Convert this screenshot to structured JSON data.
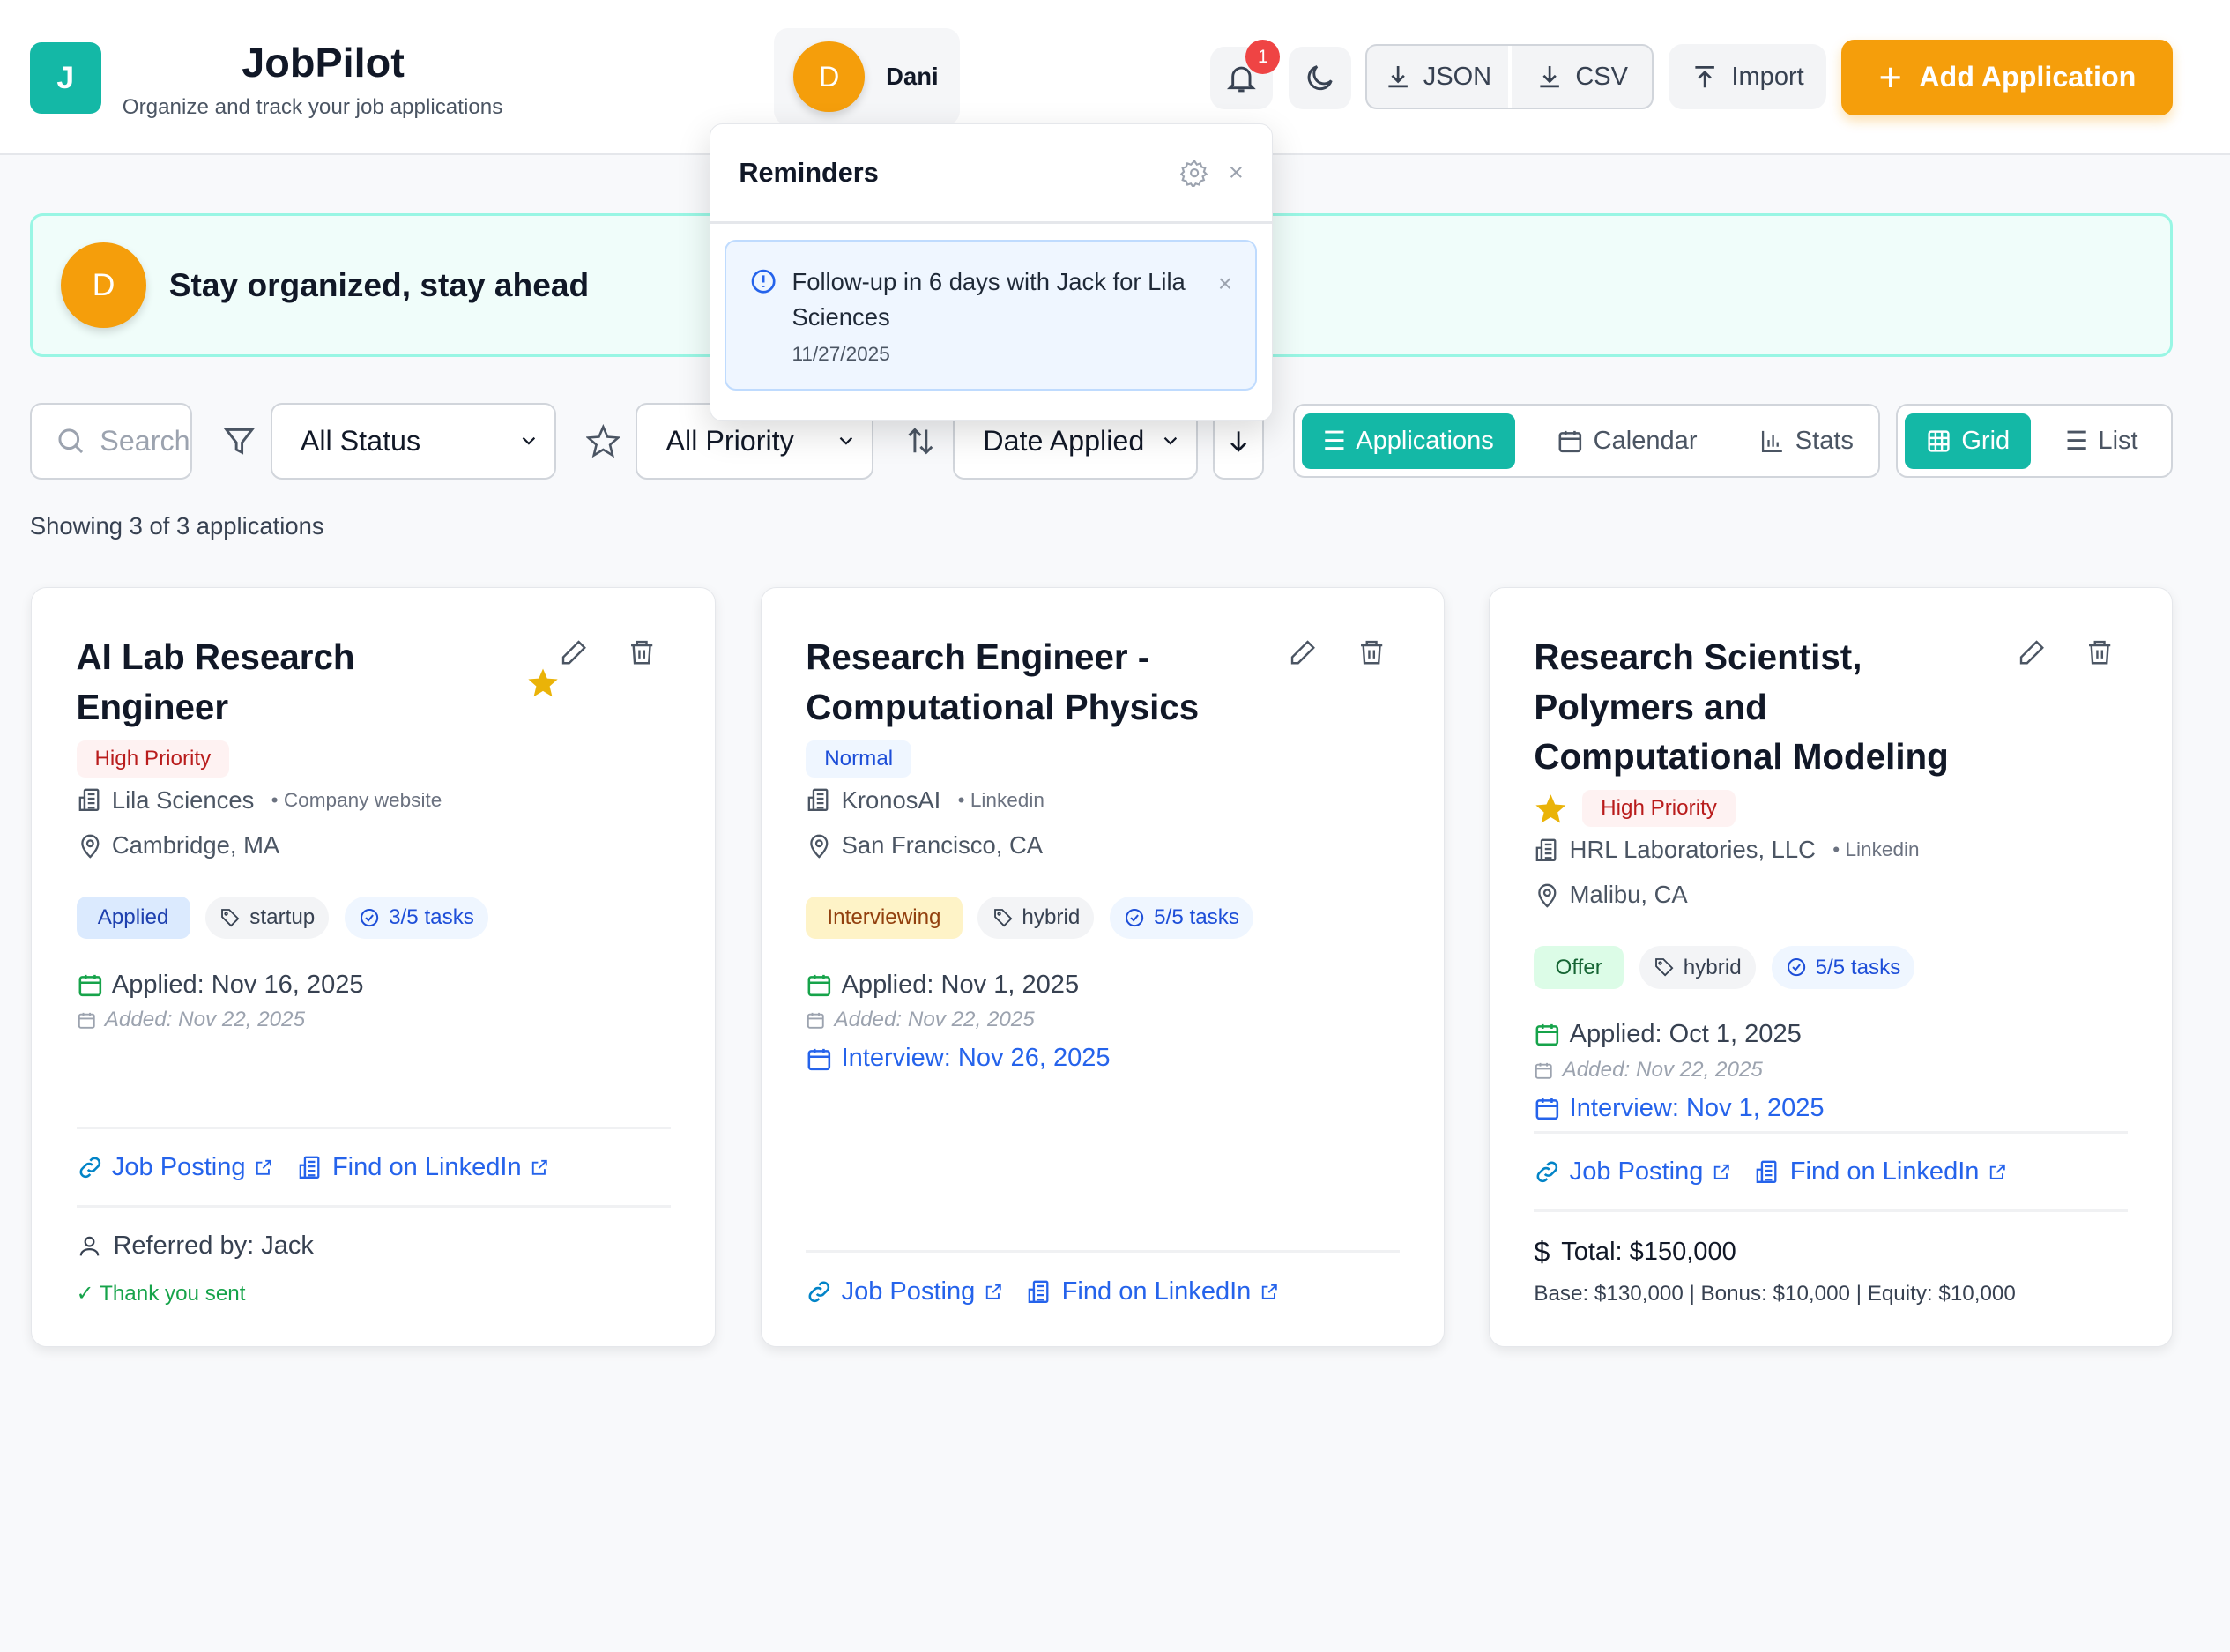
{
  "app": {
    "logo_letter": "J",
    "title": "JobPilot",
    "subtitle": "Organize and track your job applications"
  },
  "user": {
    "initial": "D",
    "name": "Dani"
  },
  "header": {
    "notification_count": "1",
    "export_json": "JSON",
    "export_csv": "CSV",
    "import": "Import",
    "add": "Add Application"
  },
  "colors": {
    "brand": "#14b8a6",
    "accent": "#f59e0b",
    "danger": "#ef4444",
    "link": "#2563eb"
  },
  "banner": {
    "initial": "D",
    "text": "Stay organized, stay ahead"
  },
  "reminders": {
    "title": "Reminders",
    "items": [
      {
        "text": "Follow-up in 6 days with Jack for Lila Sciences",
        "date": "11/27/2025"
      }
    ]
  },
  "filters": {
    "search_placeholder": "Search",
    "status": "All Status",
    "priority": "All Priority",
    "sort": "Date Applied"
  },
  "views": {
    "applications": "Applications",
    "calendar": "Calendar",
    "stats": "Stats",
    "grid": "Grid",
    "list": "List",
    "active_view": "Applications",
    "active_layout": "Grid"
  },
  "count_text": "Showing 3 of 3 applications",
  "cards": [
    {
      "title": "AI Lab Research Engineer",
      "starred": true,
      "priority": "High Priority",
      "company": "Lila Sciences",
      "source": "Company website",
      "location": "Cambridge, MA",
      "status": "Applied",
      "tag": "startup",
      "tasks": "3/5 tasks",
      "applied": "Applied: Nov 16, 2025",
      "added": "Added: Nov 22, 2025",
      "job_posting": "Job Posting",
      "linkedin": "Find on LinkedIn",
      "referral": "Referred by: Jack",
      "thank_you": "Thank you sent"
    },
    {
      "title": "Research Engineer - Computational Physics",
      "starred": false,
      "priority": "Normal",
      "company": "KronosAI",
      "source": "Linkedin",
      "location": "San Francisco, CA",
      "status": "Interviewing",
      "tag": "hybrid",
      "tasks": "5/5 tasks",
      "applied": "Applied: Nov 1, 2025",
      "added": "Added: Nov 22, 2025",
      "interview": "Interview: Nov 26, 2025",
      "job_posting": "Job Posting",
      "linkedin": "Find on LinkedIn"
    },
    {
      "title": "Research Scientist, Polymers and Computational Modeling",
      "starred": true,
      "priority": "High Priority",
      "company": "HRL Laboratories, LLC",
      "source": "Linkedin",
      "location": "Malibu, CA",
      "status": "Offer",
      "tag": "hybrid",
      "tasks": "5/5 tasks",
      "applied": "Applied: Oct 1, 2025",
      "added": "Added: Nov 22, 2025",
      "interview": "Interview: Nov 1, 2025",
      "job_posting": "Job Posting",
      "linkedin": "Find on LinkedIn",
      "total": "Total: $150,000",
      "breakdown": "Base: $130,000 | Bonus: $10,000 | Equity: $10,000"
    }
  ]
}
